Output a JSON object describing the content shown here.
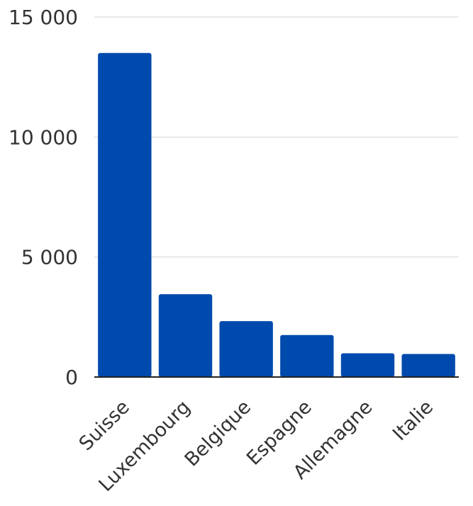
{
  "chart_data": {
    "type": "bar",
    "categories": [
      "Suisse",
      "Luxembourg",
      "Belgique",
      "Espagne",
      "Allemagne",
      "Italie"
    ],
    "values": [
      13500,
      3450,
      2330,
      1750,
      990,
      960
    ],
    "title": "",
    "xlabel": "",
    "ylabel": "",
    "ylim": [
      0,
      15000
    ],
    "yticks": [
      0,
      5000,
      10000,
      15000
    ],
    "ytick_labels": [
      "0",
      "5 000",
      "10 000",
      "15 000"
    ],
    "grid": true,
    "bar_color": "#004aad"
  }
}
